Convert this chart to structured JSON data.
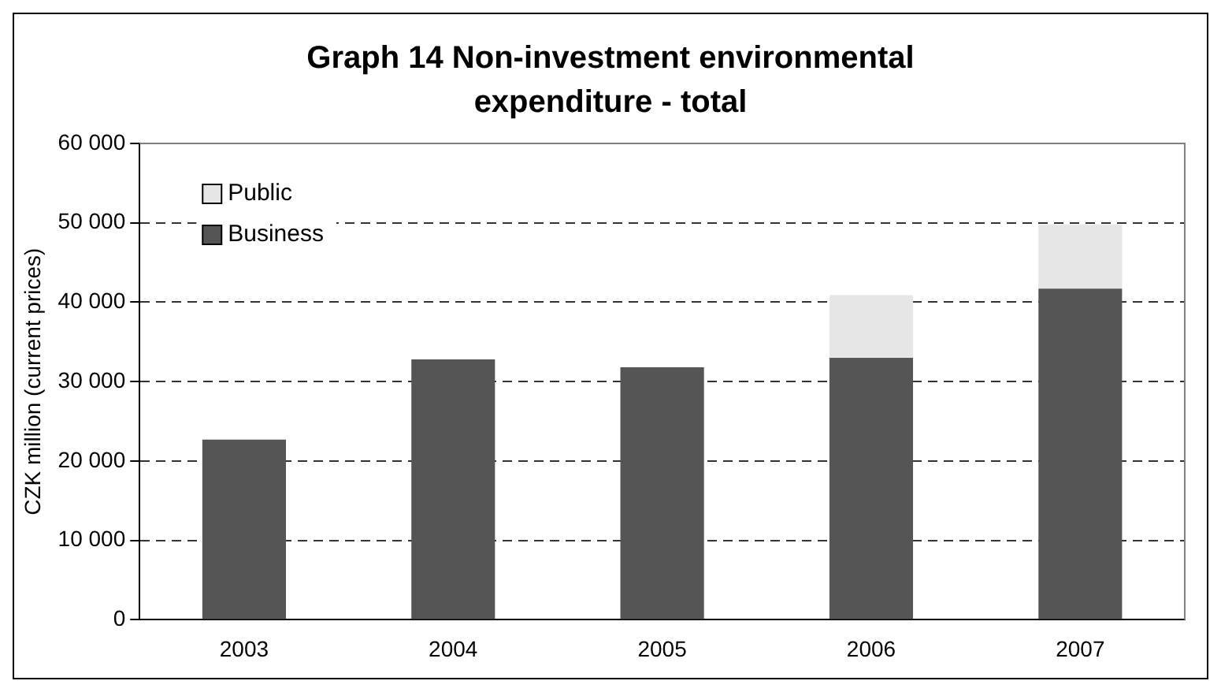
{
  "chart_data": {
    "type": "bar",
    "title": "Graph 14 Non-investment environmental expenditure - total",
    "ylabel": "CZK million (current prices)",
    "categories": [
      "2003",
      "2004",
      "2005",
      "2006",
      "2007"
    ],
    "series": [
      {
        "name": "Business",
        "color": "#555555",
        "values": [
          22700,
          32800,
          31800,
          33000,
          41700
        ]
      },
      {
        "name": "Public",
        "color": "#e6e6e6",
        "values": [
          null,
          null,
          null,
          7900,
          8100
        ]
      }
    ],
    "stacked": true,
    "ylim": [
      0,
      60000
    ],
    "yticks": [
      {
        "value": 0,
        "label": "0"
      },
      {
        "value": 10000,
        "label": "10 000"
      },
      {
        "value": 20000,
        "label": "20 000"
      },
      {
        "value": 30000,
        "label": "30 000"
      },
      {
        "value": 40000,
        "label": "40 000"
      },
      {
        "value": 50000,
        "label": "50 000"
      },
      {
        "value": 60000,
        "label": "60 000"
      }
    ],
    "grid": "y",
    "legend": "top left"
  }
}
